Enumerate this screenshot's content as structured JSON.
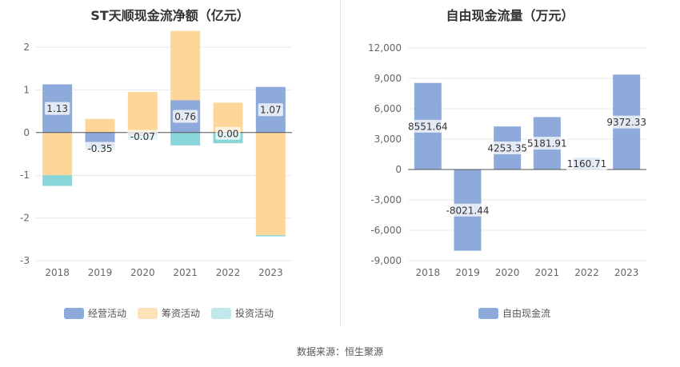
{
  "source_text": "数据来源：恒生聚源",
  "chart_data": [
    {
      "type": "bar",
      "stacked": true,
      "title": "ST天顺现金流净额（亿元）",
      "categories": [
        "2018",
        "2019",
        "2020",
        "2021",
        "2022",
        "2023"
      ],
      "ylim": [
        -3,
        2
      ],
      "yticks": [
        2,
        1,
        0,
        -1,
        -2,
        -3
      ],
      "grid": true,
      "legend_position": "bottom",
      "net_labels": [
        "1.13",
        "-0.35",
        "-0.07",
        "0.76",
        "0.00",
        "1.07"
      ],
      "series": [
        {
          "name": "经营活动",
          "color": "#8eaadb",
          "values": [
            1.13,
            -0.35,
            -0.07,
            0.76,
            0.0,
            1.07
          ]
        },
        {
          "name": "筹资活动",
          "color": "#fed699",
          "values": [
            -1.0,
            0.32,
            0.95,
            1.62,
            0.7,
            -2.4
          ]
        },
        {
          "name": "投资活动",
          "color": "#89d6d8",
          "values": [
            -0.25,
            -0.05,
            -0.1,
            -0.3,
            -0.25,
            -0.03
          ]
        }
      ]
    },
    {
      "type": "bar",
      "title": "自由现金流量（万元）",
      "categories": [
        "2018",
        "2019",
        "2020",
        "2021",
        "2022",
        "2023"
      ],
      "ylim": [
        -9000,
        12000
      ],
      "yticks": [
        "12,000",
        "9,000",
        "6,000",
        "3,000",
        "0",
        "-3,000",
        "-6,000",
        "-9,000"
      ],
      "grid": true,
      "legend_position": "bottom",
      "data_labels": [
        "8551.64",
        "-8021.44",
        "4253.35",
        "5181.91",
        "1160.71",
        "9372.33"
      ],
      "series": [
        {
          "name": "自由现金流",
          "color": "#8eaadb",
          "values": [
            8551.64,
            -8021.44,
            4253.35,
            5181.91,
            1160.71,
            9372.33
          ]
        }
      ]
    }
  ]
}
